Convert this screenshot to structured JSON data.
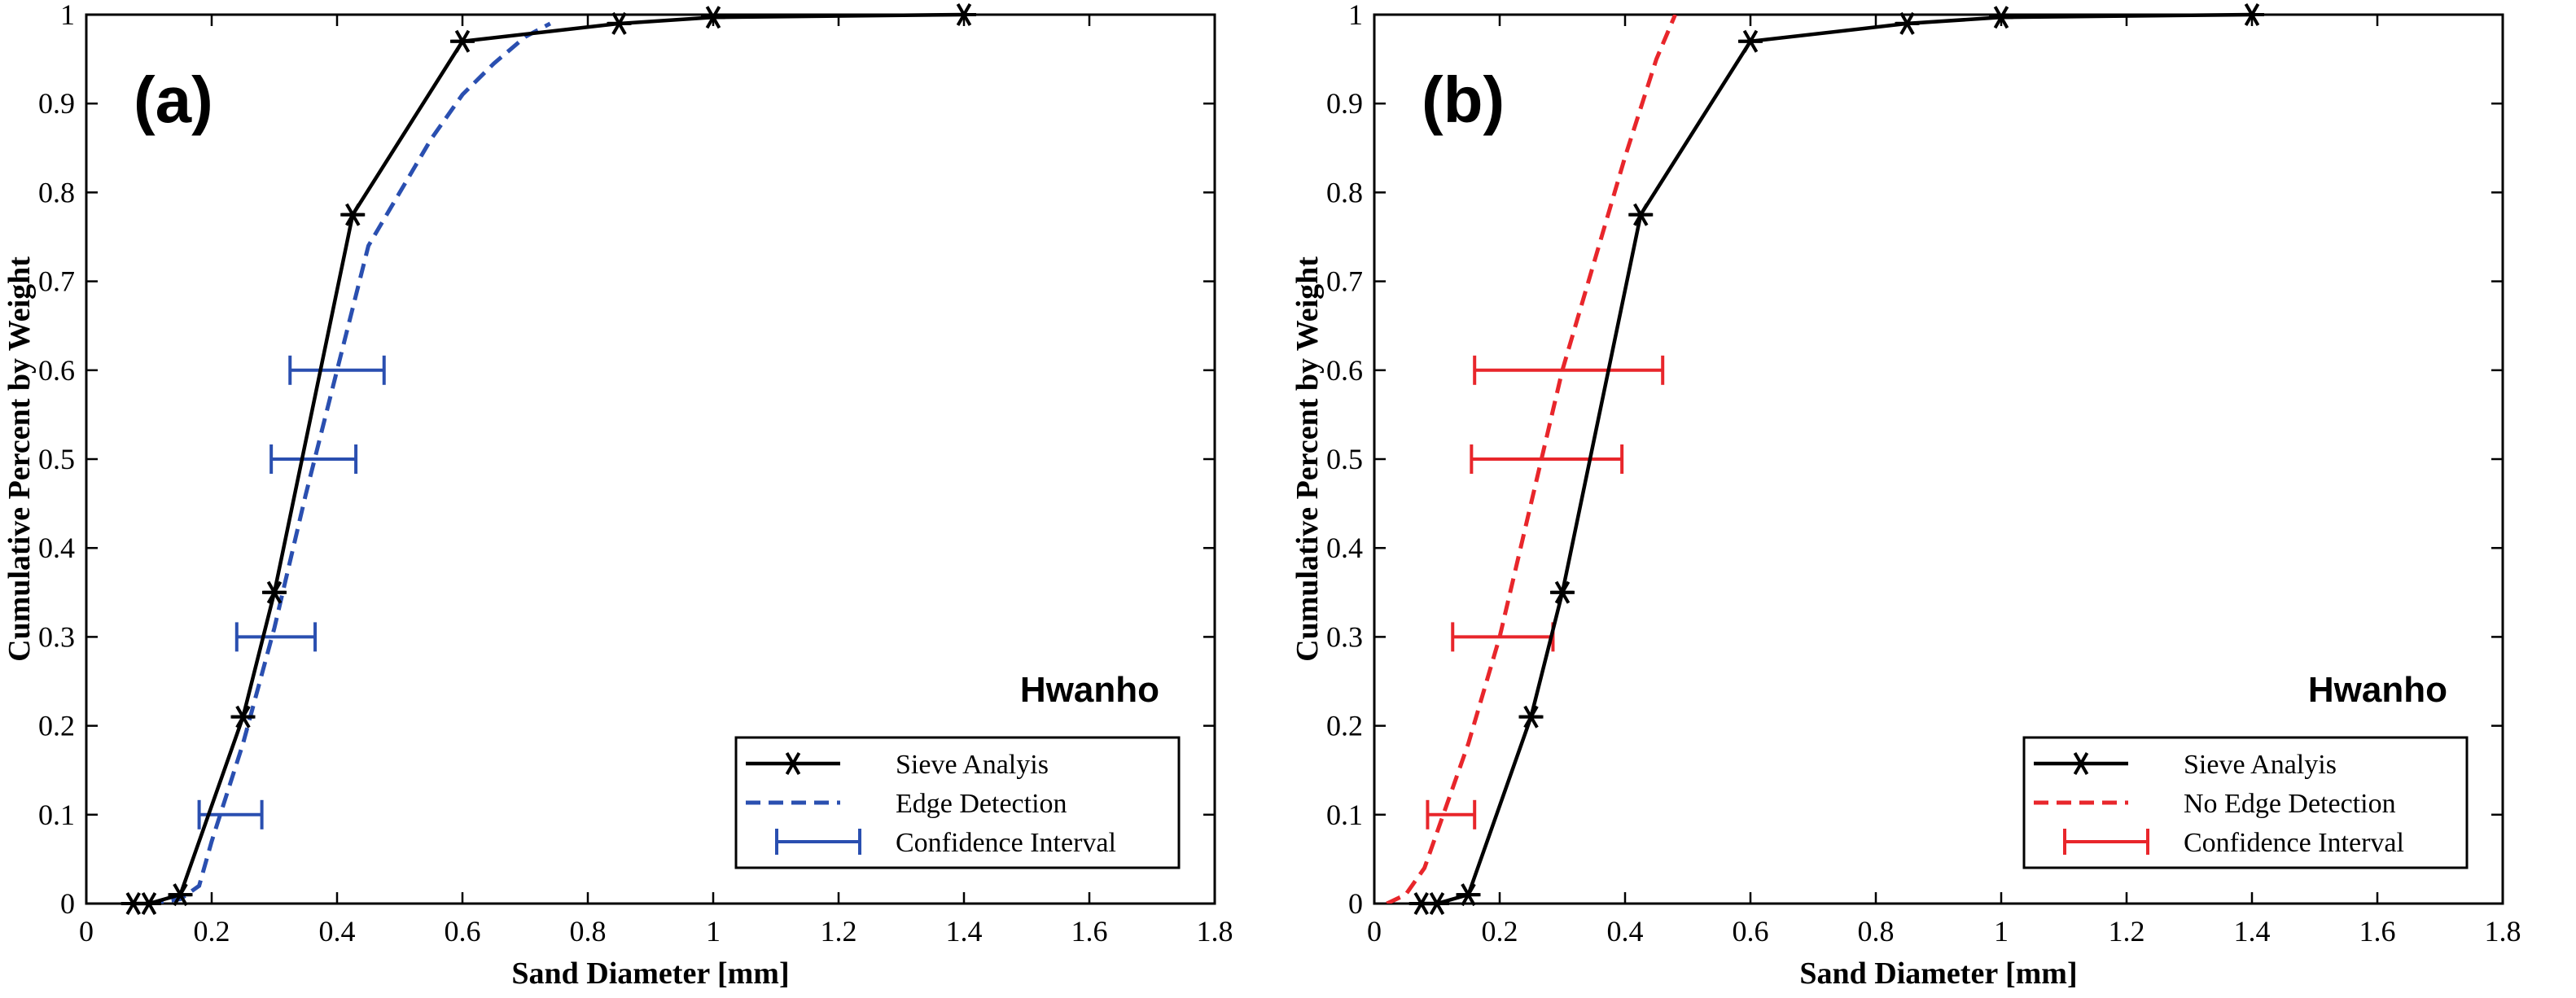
{
  "chart_data": [
    {
      "type": "line",
      "panel_label": "(a)",
      "annotation": "Hwanho",
      "xlabel": "Sand Diameter [mm]",
      "ylabel": "Cumulative Percent by Weight",
      "xlim": [
        0,
        1.8
      ],
      "ylim": [
        0,
        1
      ],
      "xticks": [
        "0",
        "0.2",
        "0.4",
        "0.6",
        "0.8",
        "1",
        "1.2",
        "1.4",
        "1.6",
        "1.8"
      ],
      "yticks": [
        "0",
        "0.1",
        "0.2",
        "0.3",
        "0.4",
        "0.5",
        "0.6",
        "0.7",
        "0.8",
        "0.9",
        "1"
      ],
      "legend_position": "bottom-right",
      "color": "#2a4fb0",
      "sieve": {
        "name": "Sieve Analyis",
        "x": [
          0.075,
          0.1,
          0.15,
          0.25,
          0.3,
          0.425,
          0.6,
          0.85,
          1.0,
          1.4
        ],
        "y": [
          0.0,
          0.0,
          0.01,
          0.21,
          0.35,
          0.775,
          0.97,
          0.99,
          0.997,
          1.0
        ]
      },
      "estimate": {
        "name": "Edge Detection",
        "x": [
          0.1,
          0.15,
          0.18,
          0.2,
          0.25,
          0.3,
          0.35,
          0.4,
          0.45,
          0.5,
          0.55,
          0.6,
          0.65,
          0.7,
          0.74
        ],
        "y": [
          0.0,
          0.005,
          0.02,
          0.07,
          0.18,
          0.31,
          0.46,
          0.6,
          0.74,
          0.8,
          0.86,
          0.91,
          0.945,
          0.975,
          0.99
        ]
      },
      "intervals": {
        "name": "Confidence Interval",
        "items": [
          {
            "y": 0.1,
            "low": 0.18,
            "high": 0.28
          },
          {
            "y": 0.3,
            "low": 0.24,
            "high": 0.365
          },
          {
            "y": 0.5,
            "low": 0.295,
            "high": 0.43
          },
          {
            "y": 0.6,
            "low": 0.325,
            "high": 0.475
          }
        ]
      }
    },
    {
      "type": "line",
      "panel_label": "(b)",
      "annotation": "Hwanho",
      "xlabel": "Sand Diameter [mm]",
      "ylabel": "Cumulative Percent by Weight",
      "xlim": [
        0,
        1.8
      ],
      "ylim": [
        0,
        1
      ],
      "xticks": [
        "0",
        "0.2",
        "0.4",
        "0.6",
        "0.8",
        "1",
        "1.2",
        "1.4",
        "1.6",
        "1.8"
      ],
      "yticks": [
        "0",
        "0.1",
        "0.2",
        "0.3",
        "0.4",
        "0.5",
        "0.6",
        "0.7",
        "0.8",
        "0.9",
        "1"
      ],
      "legend_position": "bottom-right",
      "color": "#e8262b",
      "sieve": {
        "name": "Sieve Analyis",
        "x": [
          0.075,
          0.1,
          0.15,
          0.25,
          0.3,
          0.425,
          0.6,
          0.85,
          1.0,
          1.4
        ],
        "y": [
          0.0,
          0.0,
          0.01,
          0.21,
          0.35,
          0.775,
          0.97,
          0.99,
          0.997,
          1.0
        ]
      },
      "estimate": {
        "name": "No Edge Detection",
        "x": [
          0.02,
          0.05,
          0.08,
          0.1,
          0.12,
          0.15,
          0.2,
          0.25,
          0.3,
          0.35,
          0.4,
          0.45,
          0.48
        ],
        "y": [
          0.0,
          0.01,
          0.04,
          0.08,
          0.12,
          0.18,
          0.3,
          0.45,
          0.6,
          0.72,
          0.84,
          0.95,
          1.0
        ]
      },
      "intervals": {
        "name": "Confidence Interval",
        "items": [
          {
            "y": 0.1,
            "low": 0.085,
            "high": 0.16
          },
          {
            "y": 0.3,
            "low": 0.125,
            "high": 0.285
          },
          {
            "y": 0.5,
            "low": 0.155,
            "high": 0.395
          },
          {
            "y": 0.6,
            "low": 0.16,
            "high": 0.46
          }
        ]
      }
    }
  ]
}
